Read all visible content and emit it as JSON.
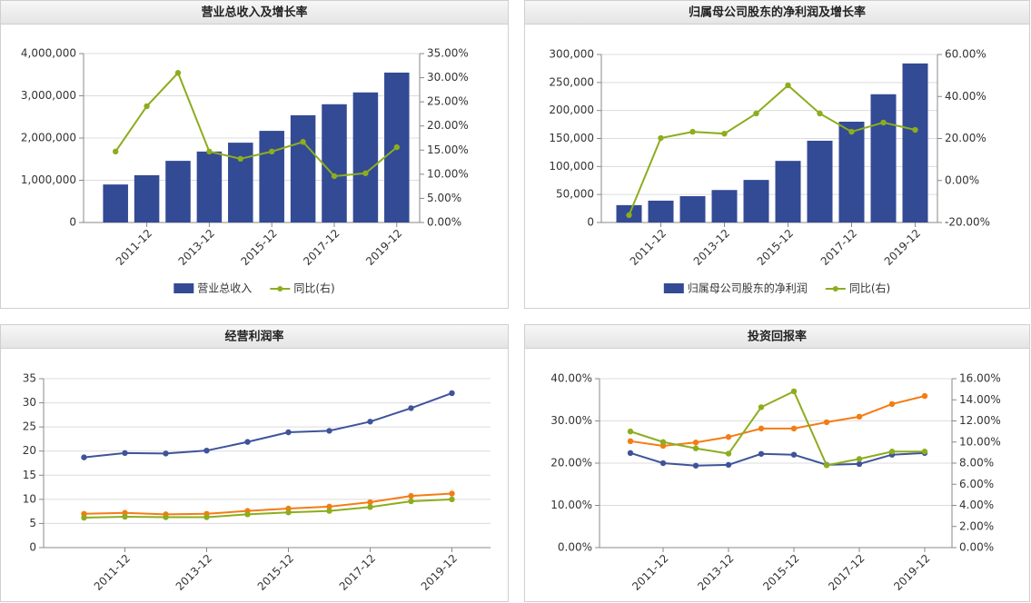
{
  "chart_data": [
    {
      "type": "bar",
      "title": "营业总收入及增长率",
      "categories": [
        null,
        "2011-12",
        null,
        "2013-12",
        null,
        "2015-12",
        null,
        "2017-12",
        null,
        "2019-12"
      ],
      "series": [
        {
          "name": "营业总收入",
          "type": "bar",
          "color": "#334a94",
          "values": [
            900000,
            1120000,
            1460000,
            1680000,
            1890000,
            2170000,
            2540000,
            2800000,
            3080000,
            3550000
          ]
        },
        {
          "name": "同比(右)",
          "type": "line",
          "axis": "y2",
          "color": "#8cad1e",
          "values": [
            14.7,
            24.1,
            31.0,
            14.7,
            13.2,
            14.7,
            16.7,
            9.6,
            10.2,
            15.6
          ]
        }
      ],
      "ylim": [
        0,
        4000000
      ],
      "yticks": [
        0,
        {
          "value": 1000000,
          "label": "1,000,000"
        },
        {
          "value": 2000000,
          "label": "2,000,000"
        },
        {
          "value": 3000000,
          "label": "3,000,000"
        },
        {
          "value": 4000000,
          "label": "4,000,000"
        }
      ],
      "y2lim": [
        0,
        35
      ],
      "y2ticks": [
        {
          "value": 0,
          "label": "0.00%"
        },
        {
          "value": 5,
          "label": "5.00%"
        },
        {
          "value": 10,
          "label": "10.00%"
        },
        {
          "value": 15,
          "label": "15.00%"
        },
        {
          "value": 20,
          "label": "20.00%"
        },
        {
          "value": 25,
          "label": "25.00%"
        },
        {
          "value": 30,
          "label": "30.00%"
        },
        {
          "value": 35,
          "label": "35.00%"
        }
      ],
      "grid": true,
      "legend": "bottom"
    },
    {
      "type": "bar",
      "title": "归属母公司股东的净利润及增长率",
      "categories": [
        null,
        "2011-12",
        null,
        "2013-12",
        null,
        "2015-12",
        null,
        "2017-12",
        null,
        "2019-12"
      ],
      "series": [
        {
          "name": "归属母公司股东的净利润",
          "type": "bar",
          "color": "#334a94",
          "values": [
            31000,
            39000,
            47000,
            58000,
            76000,
            110000,
            146000,
            180000,
            229000,
            284000
          ]
        },
        {
          "name": "同比(右)",
          "type": "line",
          "axis": "y2",
          "color": "#8cad1e",
          "values": [
            -16.5,
            20.2,
            23.2,
            22.3,
            31.9,
            45.3,
            31.9,
            23.2,
            27.6,
            24.1
          ]
        }
      ],
      "ylim": [
        0,
        300000
      ],
      "yticks": [
        0,
        {
          "value": 50000,
          "label": "50,000"
        },
        {
          "value": 100000,
          "label": "100,000"
        },
        {
          "value": 150000,
          "label": "150,000"
        },
        {
          "value": 200000,
          "label": "200,000"
        },
        {
          "value": 250000,
          "label": "250,000"
        },
        {
          "value": 300000,
          "label": "300,000"
        }
      ],
      "y2lim": [
        -20,
        60
      ],
      "y2ticks": [
        {
          "value": -20,
          "label": "-20.00%"
        },
        {
          "value": 0,
          "label": "0.00%"
        },
        {
          "value": 20,
          "label": "20.00%"
        },
        {
          "value": 40,
          "label": "40.00%"
        },
        {
          "value": 60,
          "label": "60.00%"
        }
      ],
      "grid": true,
      "legend": "bottom"
    },
    {
      "type": "line",
      "title": "经营利润率",
      "categories": [
        null,
        "2011-12",
        null,
        "2013-12",
        null,
        "2015-12",
        null,
        "2017-12",
        null,
        "2019-12"
      ],
      "series": [
        {
          "type": "line",
          "color": "#3f539a",
          "values": [
            18.7,
            19.6,
            19.5,
            20.1,
            21.9,
            23.9,
            24.2,
            26.1,
            28.9,
            32.0
          ]
        },
        {
          "type": "line",
          "color": "#f47c14",
          "values": [
            7.0,
            7.2,
            6.9,
            7.0,
            7.6,
            8.1,
            8.5,
            9.4,
            10.7,
            11.2
          ]
        },
        {
          "type": "line",
          "color": "#8cad1e",
          "values": [
            6.2,
            6.4,
            6.3,
            6.3,
            6.9,
            7.3,
            7.6,
            8.4,
            9.6,
            10.0
          ]
        }
      ],
      "ylim": [
        0,
        35
      ],
      "yticks": [
        0,
        5,
        10,
        15,
        20,
        25,
        30,
        35
      ],
      "grid": true
    },
    {
      "type": "line",
      "title": "投资回报率",
      "categories": [
        null,
        "2011-12",
        null,
        "2013-12",
        null,
        "2015-12",
        null,
        "2017-12",
        null,
        "2019-12"
      ],
      "series": [
        {
          "type": "line",
          "color": "#3f539a",
          "values": [
            22.4,
            20.0,
            19.4,
            19.6,
            22.2,
            22.0,
            19.6,
            19.8,
            22.0,
            22.4
          ]
        },
        {
          "type": "line",
          "color": "#f47c14",
          "values": [
            25.2,
            24.1,
            24.9,
            26.2,
            28.2,
            28.2,
            29.7,
            31.0,
            34.0,
            35.9
          ]
        },
        {
          "type": "line",
          "axis": "y2",
          "color": "#8cad1e",
          "values": [
            11.0,
            10.0,
            9.4,
            8.9,
            13.3,
            14.8,
            7.8,
            8.4,
            9.1,
            9.1
          ]
        }
      ],
      "ylim": [
        0,
        40
      ],
      "yticks": [
        {
          "value": 0,
          "label": "0.00%"
        },
        {
          "value": 10,
          "label": "10.00%"
        },
        {
          "value": 20,
          "label": "20.00%"
        },
        {
          "value": 30,
          "label": "30.00%"
        },
        {
          "value": 40,
          "label": "40.00%"
        }
      ],
      "y2lim": [
        0,
        16
      ],
      "y2ticks": [
        {
          "value": 0,
          "label": "0.00%"
        },
        {
          "value": 2,
          "label": "2.00%"
        },
        {
          "value": 4,
          "label": "4.00%"
        },
        {
          "value": 6,
          "label": "6.00%"
        },
        {
          "value": 8,
          "label": "8.00%"
        },
        {
          "value": 10,
          "label": "10.00%"
        },
        {
          "value": 12,
          "label": "12.00%"
        },
        {
          "value": 14,
          "label": "14.00%"
        },
        {
          "value": 16,
          "label": "16.00%"
        }
      ],
      "grid": true
    }
  ]
}
